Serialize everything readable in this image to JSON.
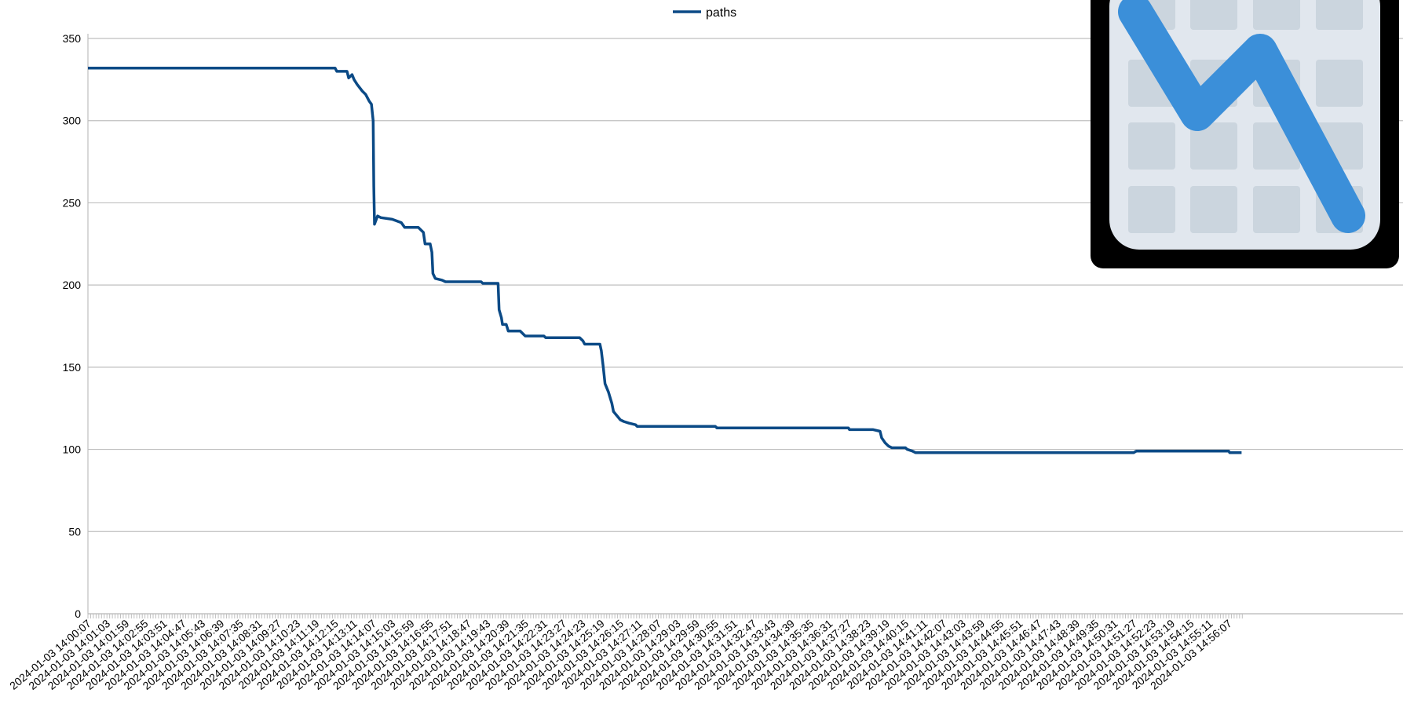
{
  "chart_data": {
    "type": "line",
    "title": "",
    "xlabel": "",
    "ylabel": "",
    "ylim": [
      0,
      350
    ],
    "y_ticks": [
      0,
      50,
      100,
      150,
      200,
      250,
      300,
      350
    ],
    "grid": "horizontal",
    "legend_position": "top-center",
    "x_tick_labels": [
      "2024-01-03 14:00:07",
      "2024-01-03 14:01:03",
      "2024-01-03 14:01:59",
      "2024-01-03 14:02:55",
      "2024-01-03 14:03:51",
      "2024-01-03 14:04:47",
      "2024-01-03 14:05:43",
      "2024-01-03 14:06:39",
      "2024-01-03 14:07:35",
      "2024-01-03 14:08:31",
      "2024-01-03 14:09:27",
      "2024-01-03 14:10:23",
      "2024-01-03 14:11:19",
      "2024-01-03 14:12:15",
      "2024-01-03 14:13:11",
      "2024-01-03 14:14:07",
      "2024-01-03 14:15:03",
      "2024-01-03 14:15:59",
      "2024-01-03 14:16:55",
      "2024-01-03 14:17:51",
      "2024-01-03 14:18:47",
      "2024-01-03 14:19:43",
      "2024-01-03 14:20:39",
      "2024-01-03 14:21:35",
      "2024-01-03 14:22:31",
      "2024-01-03 14:23:27",
      "2024-01-03 14:24:23",
      "2024-01-03 14:25:19",
      "2024-01-03 14:26:15",
      "2024-01-03 14:27:11",
      "2024-01-03 14:28:07",
      "2024-01-03 14:29:03",
      "2024-01-03 14:29:59",
      "2024-01-03 14:30:55",
      "2024-01-03 14:31:51",
      "2024-01-03 14:32:47",
      "2024-01-03 14:33:43",
      "2024-01-03 14:34:39",
      "2024-01-03 14:35:35",
      "2024-01-03 14:36:31",
      "2024-01-03 14:37:27",
      "2024-01-03 14:38:23",
      "2024-01-03 14:39:19",
      "2024-01-03 14:40:15",
      "2024-01-03 14:41:11",
      "2024-01-03 14:42:07",
      "2024-01-03 14:43:03",
      "2024-01-03 14:43:59",
      "2024-01-03 14:44:55",
      "2024-01-03 14:45:51",
      "2024-01-03 14:46:47",
      "2024-01-03 14:47:43",
      "2024-01-03 14:48:39",
      "2024-01-03 14:49:35",
      "2024-01-03 14:50:31",
      "2024-01-03 14:51:27",
      "2024-01-03 14:52:23",
      "2024-01-03 14:53:19",
      "2024-01-03 14:54:15",
      "2024-01-03 14:55:11",
      "2024-01-03 14:56:07"
    ],
    "series": [
      {
        "name": "paths",
        "color": "#0b4a86",
        "points": [
          [
            "2024-01-03 14:00:07",
            332
          ],
          [
            "2024-01-03 14:12:15",
            332
          ],
          [
            "2024-01-03 14:12:20",
            330
          ],
          [
            "2024-01-03 14:12:50",
            330
          ],
          [
            "2024-01-03 14:12:55",
            326
          ],
          [
            "2024-01-03 14:13:05",
            328
          ],
          [
            "2024-01-03 14:13:11",
            325
          ],
          [
            "2024-01-03 14:13:20",
            322
          ],
          [
            "2024-01-03 14:13:35",
            318
          ],
          [
            "2024-01-03 14:13:45",
            316
          ],
          [
            "2024-01-03 14:13:55",
            312
          ],
          [
            "2024-01-03 14:14:02",
            310
          ],
          [
            "2024-01-03 14:14:07",
            300
          ],
          [
            "2024-01-03 14:14:09",
            260
          ],
          [
            "2024-01-03 14:14:11",
            237
          ],
          [
            "2024-01-03 14:14:20",
            242
          ],
          [
            "2024-01-03 14:14:30",
            241
          ],
          [
            "2024-01-03 14:15:03",
            240
          ],
          [
            "2024-01-03 14:15:30",
            238
          ],
          [
            "2024-01-03 14:15:40",
            235
          ],
          [
            "2024-01-03 14:16:20",
            235
          ],
          [
            "2024-01-03 14:16:35",
            232
          ],
          [
            "2024-01-03 14:16:40",
            225
          ],
          [
            "2024-01-03 14:16:55",
            225
          ],
          [
            "2024-01-03 14:17:00",
            220
          ],
          [
            "2024-01-03 14:17:03",
            207
          ],
          [
            "2024-01-03 14:17:10",
            204
          ],
          [
            "2024-01-03 14:17:30",
            203
          ],
          [
            "2024-01-03 14:17:40",
            202
          ],
          [
            "2024-01-03 14:19:25",
            202
          ],
          [
            "2024-01-03 14:19:30",
            201
          ],
          [
            "2024-01-03 14:20:15",
            201
          ],
          [
            "2024-01-03 14:20:18",
            185
          ],
          [
            "2024-01-03 14:20:25",
            180
          ],
          [
            "2024-01-03 14:20:28",
            176
          ],
          [
            "2024-01-03 14:20:39",
            176
          ],
          [
            "2024-01-03 14:20:45",
            172
          ],
          [
            "2024-01-03 14:21:20",
            172
          ],
          [
            "2024-01-03 14:21:35",
            169
          ],
          [
            "2024-01-03 14:22:30",
            169
          ],
          [
            "2024-01-03 14:22:35",
            168
          ],
          [
            "2024-01-03 14:24:15",
            168
          ],
          [
            "2024-01-03 14:24:25",
            166
          ],
          [
            "2024-01-03 14:24:30",
            164
          ],
          [
            "2024-01-03 14:25:15",
            164
          ],
          [
            "2024-01-03 14:25:19",
            160
          ],
          [
            "2024-01-03 14:25:25",
            150
          ],
          [
            "2024-01-03 14:25:30",
            140
          ],
          [
            "2024-01-03 14:25:40",
            135
          ],
          [
            "2024-01-03 14:25:50",
            128
          ],
          [
            "2024-01-03 14:25:55",
            123
          ],
          [
            "2024-01-03 14:26:15",
            118
          ],
          [
            "2024-01-03 14:26:25",
            117
          ],
          [
            "2024-01-03 14:26:40",
            116
          ],
          [
            "2024-01-03 14:27:00",
            115
          ],
          [
            "2024-01-03 14:27:05",
            114
          ],
          [
            "2024-01-03 14:29:59",
            114
          ],
          [
            "2024-01-03 14:30:55",
            114
          ],
          [
            "2024-01-03 14:31:00",
            113
          ],
          [
            "2024-01-03 14:37:27",
            113
          ],
          [
            "2024-01-03 14:37:30",
            112
          ],
          [
            "2024-01-03 14:38:40",
            112
          ],
          [
            "2024-01-03 14:39:00",
            111
          ],
          [
            "2024-01-03 14:39:05",
            107
          ],
          [
            "2024-01-03 14:39:15",
            104
          ],
          [
            "2024-01-03 14:39:25",
            102
          ],
          [
            "2024-01-03 14:39:35",
            101
          ],
          [
            "2024-01-03 14:40:15",
            101
          ],
          [
            "2024-01-03 14:40:20",
            100
          ],
          [
            "2024-01-03 14:40:35",
            99
          ],
          [
            "2024-01-03 14:40:45",
            98
          ],
          [
            "2024-01-03 14:51:27",
            98
          ],
          [
            "2024-01-03 14:51:35",
            99
          ],
          [
            "2024-01-03 14:56:07",
            99
          ],
          [
            "2024-01-03 14:56:10",
            98
          ],
          [
            "2024-01-03 14:56:45",
            98
          ]
        ]
      }
    ]
  },
  "overlay": {
    "icon": "line-chart-app-icon",
    "colors": {
      "frame": "#000000",
      "background": "#e1e7ee",
      "cells": "#cbd5de",
      "line": "#3b8fd9"
    }
  }
}
